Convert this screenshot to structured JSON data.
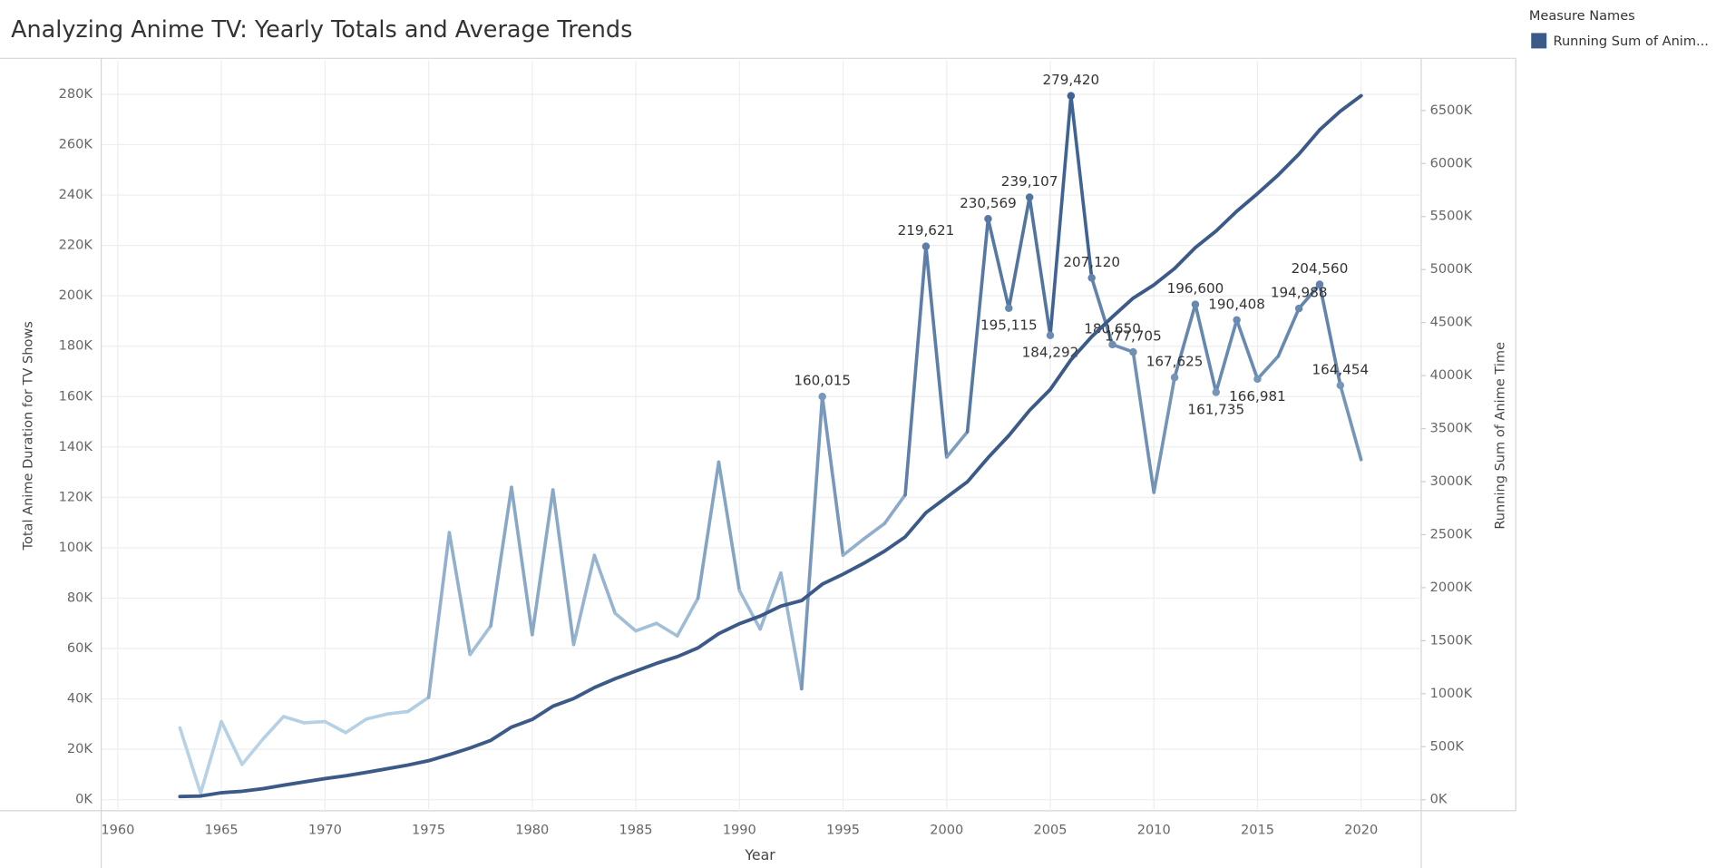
{
  "chart_data": {
    "type": "line",
    "title": "Analyzing Anime TV: Yearly Totals and Average Trends",
    "x_label": "Year",
    "y_label": "Total Anime Duration for TV Shows",
    "y2_label": "Running Sum of Anime Time",
    "legend_title": "Measure Names",
    "legend_position": "top-right",
    "grid": true,
    "x": [
      1963,
      1964,
      1965,
      1966,
      1967,
      1968,
      1969,
      1970,
      1971,
      1972,
      1973,
      1974,
      1975,
      1976,
      1977,
      1978,
      1979,
      1980,
      1981,
      1982,
      1983,
      1984,
      1985,
      1986,
      1987,
      1988,
      1989,
      1990,
      1991,
      1992,
      1993,
      1994,
      1995,
      1996,
      1997,
      1998,
      1999,
      2000,
      2001,
      2002,
      2003,
      2004,
      2005,
      2006,
      2007,
      2008,
      2009,
      2010,
      2011,
      2012,
      2013,
      2014,
      2015,
      2016,
      2017,
      2018,
      2019,
      2020
    ],
    "xlim": [
      1959.2,
      2022.9
    ],
    "xticks": [
      1960,
      1965,
      1970,
      1975,
      1980,
      1985,
      1990,
      1995,
      2000,
      2005,
      2010,
      2015,
      2020
    ],
    "ylim": [
      -4400,
      293400
    ],
    "yticks": [
      {
        "value": 0,
        "label": "0K"
      },
      {
        "value": 20000,
        "label": "20K"
      },
      {
        "value": 40000,
        "label": "40K"
      },
      {
        "value": 60000,
        "label": "60K"
      },
      {
        "value": 80000,
        "label": "80K"
      },
      {
        "value": 100000,
        "label": "100K"
      },
      {
        "value": 120000,
        "label": "120K"
      },
      {
        "value": 140000,
        "label": "140K"
      },
      {
        "value": 160000,
        "label": "160K"
      },
      {
        "value": 180000,
        "label": "180K"
      },
      {
        "value": 200000,
        "label": "200K"
      },
      {
        "value": 220000,
        "label": "220K"
      },
      {
        "value": 240000,
        "label": "240K"
      },
      {
        "value": 260000,
        "label": "260K"
      },
      {
        "value": 280000,
        "label": "280K"
      }
    ],
    "y2lim": [
      -104000,
      6971000
    ],
    "y2ticks": [
      {
        "value": 0,
        "label": "0K"
      },
      {
        "value": 500000,
        "label": "500K"
      },
      {
        "value": 1000000,
        "label": "1000K"
      },
      {
        "value": 1500000,
        "label": "1500K"
      },
      {
        "value": 2000000,
        "label": "2000K"
      },
      {
        "value": 2500000,
        "label": "2500K"
      },
      {
        "value": 3000000,
        "label": "3000K"
      },
      {
        "value": 3500000,
        "label": "3500K"
      },
      {
        "value": 4000000,
        "label": "4000K"
      },
      {
        "value": 4500000,
        "label": "4500K"
      },
      {
        "value": 5000000,
        "label": "5000K"
      },
      {
        "value": 5500000,
        "label": "5500K"
      },
      {
        "value": 6000000,
        "label": "6000K"
      },
      {
        "value": 6500000,
        "label": "6500K"
      }
    ],
    "series": [
      {
        "color_scale": [
          "#c3deef",
          "#3f6393"
        ],
        "values": [
          28500,
          2600,
          31000,
          14000,
          24000,
          33000,
          30500,
          31000,
          26600,
          32000,
          34000,
          35000,
          40600,
          106000,
          57600,
          69000,
          124000,
          65500,
          123000,
          61600,
          97000,
          74000,
          67000,
          70000,
          65000,
          80000,
          134000,
          83000,
          67700,
          90000,
          44000,
          160015,
          97000,
          103500,
          109600,
          121000,
          219621,
          136000,
          146000,
          230569,
          195115,
          239107,
          184292,
          279420,
          207120,
          180650,
          177705,
          122000,
          167625,
          196600,
          161735,
          190408,
          166981,
          176000,
          194988,
          204560,
          164454,
          135000
        ],
        "value_labels": [
          null,
          null,
          null,
          null,
          null,
          null,
          null,
          null,
          null,
          null,
          null,
          null,
          null,
          null,
          null,
          null,
          null,
          null,
          null,
          null,
          null,
          null,
          null,
          null,
          null,
          null,
          null,
          null,
          null,
          null,
          null,
          "160,015",
          null,
          null,
          null,
          null,
          "219,621",
          null,
          null,
          "230,569",
          "195,115",
          "239,107",
          "184,292",
          "279,420",
          "207,120",
          "180,650",
          "177,705",
          null,
          "167,625",
          "196,600",
          "161,735",
          "190,408",
          "166,981",
          null,
          "194,988",
          "204,560",
          "164,454",
          null
        ]
      },
      {
        "name": "Running Sum of Anim...",
        "color": "#3c5a87",
        "axis": "y2",
        "values": [
          30000,
          35000,
          66000,
          80000,
          104000,
          137000,
          168000,
          199000,
          226000,
          258000,
          292000,
          327000,
          368000,
          425000,
          488000,
          560000,
          685000,
          757000,
          882000,
          954000,
          1058000,
          1141000,
          1214000,
          1286000,
          1349000,
          1432000,
          1566000,
          1660000,
          1732000,
          1826000,
          1878000,
          2033000,
          2127000,
          2230000,
          2344000,
          2479000,
          2707000,
          2853000,
          2998000,
          3226000,
          3434000,
          3672000,
          3869000,
          4149000,
          4367000,
          4554000,
          4730000,
          4855000,
          5010000,
          5207000,
          5363000,
          5550000,
          5716000,
          5892000,
          6089000,
          6317000,
          6494000,
          6639000
        ]
      }
    ]
  }
}
